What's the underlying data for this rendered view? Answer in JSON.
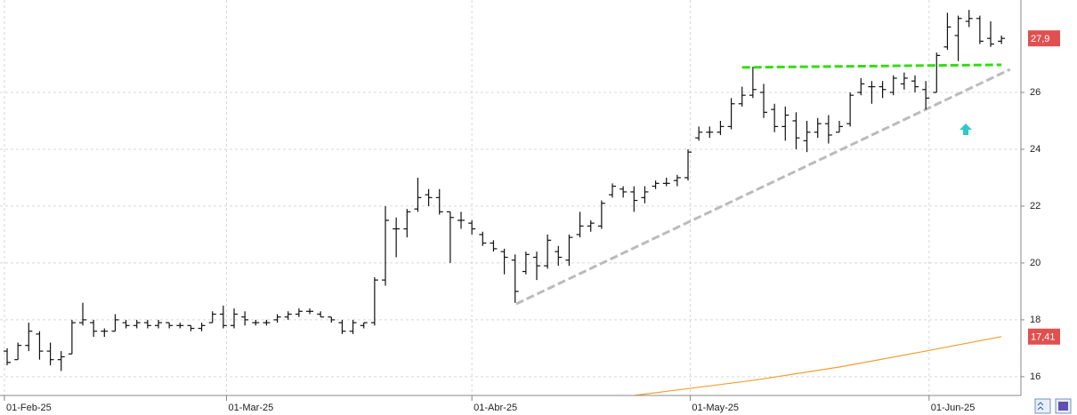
{
  "chart_data": {
    "type": "ohlc",
    "x": [
      0,
      1,
      2,
      3,
      4,
      5,
      6,
      7,
      8,
      9,
      10,
      11,
      12,
      13,
      14,
      15,
      16,
      17,
      18,
      19,
      20,
      21,
      22,
      23,
      24,
      25,
      26,
      27,
      28,
      29,
      30,
      31,
      32,
      33,
      34,
      35,
      36,
      37,
      38,
      39,
      40,
      41,
      42,
      43,
      44,
      45,
      46,
      47,
      48,
      49,
      50,
      51,
      52,
      53,
      54,
      55,
      56,
      57,
      58,
      59,
      60,
      61,
      62,
      63,
      64,
      65,
      66,
      67,
      68,
      69,
      70,
      71,
      72,
      73,
      74,
      75,
      76,
      77,
      78,
      79,
      80,
      81,
      82,
      83,
      84,
      85,
      86,
      87,
      88,
      89,
      90,
      91,
      92
    ],
    "open": [
      16.9,
      16.6,
      17.1,
      17.5,
      16.9,
      16.6,
      16.8,
      17.9,
      17.9,
      17.6,
      17.6,
      17.9,
      17.8,
      17.9,
      17.8,
      17.9,
      17.8,
      17.8,
      17.7,
      17.9,
      18.2,
      17.8,
      18.1,
      17.9,
      17.9,
      18.0,
      18.1,
      18.2,
      18.3,
      18.2,
      18.1,
      17.9,
      17.6,
      17.8,
      17.9,
      19.4,
      21.2,
      21.2,
      21.9,
      22.4,
      22.3,
      21.8,
      21.5,
      21.4,
      21.0,
      20.7,
      20.4,
      20.1,
      19.7,
      20.2,
      19.9,
      20.4,
      20.1,
      21.0,
      21.3,
      21.3,
      22.4,
      22.6,
      22.5,
      22.3,
      22.7,
      22.8,
      22.9,
      23.0,
      24.4,
      24.6,
      24.6,
      24.8,
      25.6,
      25.9,
      26.0,
      25.4,
      24.8,
      25.0,
      24.3,
      24.6,
      24.9,
      24.6,
      24.9,
      26.0,
      26.2,
      26.2,
      26.0,
      26.3,
      26.4,
      26.1,
      26.0,
      27.6,
      28.0,
      28.5,
      28.6,
      27.9,
      27.8
    ],
    "high": [
      17.0,
      17.2,
      17.9,
      17.6,
      17.2,
      16.9,
      18.0,
      18.6,
      18.0,
      17.7,
      18.2,
      18.0,
      18.0,
      18.0,
      18.0,
      17.9,
      17.9,
      17.8,
      17.9,
      18.3,
      18.5,
      18.4,
      18.3,
      18.0,
      18.0,
      18.2,
      18.3,
      18.4,
      18.4,
      18.3,
      18.1,
      18.0,
      18.0,
      17.9,
      19.5,
      22.0,
      21.6,
      21.9,
      23.0,
      22.6,
      22.6,
      21.8,
      21.8,
      21.5,
      21.1,
      20.8,
      20.5,
      20.3,
      20.4,
      20.4,
      21.0,
      20.6,
      21.0,
      21.8,
      21.5,
      22.2,
      22.8,
      22.7,
      22.7,
      22.7,
      22.9,
      23.0,
      23.1,
      24.0,
      24.8,
      24.8,
      25.0,
      25.8,
      26.2,
      26.9,
      26.3,
      25.6,
      25.5,
      25.3,
      25.0,
      25.1,
      25.2,
      25.0,
      26.0,
      26.5,
      26.4,
      26.4,
      26.6,
      26.7,
      26.6,
      26.4,
      27.4,
      28.8,
      28.7,
      28.9,
      28.7,
      28.5,
      28.0
    ],
    "low": [
      16.4,
      16.6,
      16.9,
      16.6,
      16.4,
      16.2,
      16.8,
      17.8,
      17.4,
      17.4,
      17.6,
      17.7,
      17.7,
      17.7,
      17.7,
      17.7,
      17.7,
      17.6,
      17.6,
      17.9,
      17.7,
      17.7,
      17.8,
      17.8,
      17.8,
      17.9,
      18.0,
      18.1,
      18.2,
      18.1,
      17.9,
      17.5,
      17.5,
      17.7,
      17.8,
      19.2,
      20.2,
      20.9,
      21.8,
      22.0,
      21.7,
      20.0,
      21.2,
      21.0,
      20.6,
      20.4,
      19.6,
      18.6,
      19.6,
      19.4,
      19.8,
      19.9,
      19.9,
      20.9,
      21.1,
      21.2,
      22.3,
      22.3,
      21.8,
      22.1,
      22.6,
      22.7,
      22.7,
      22.9,
      24.3,
      24.4,
      24.5,
      24.7,
      25.5,
      25.8,
      25.1,
      24.6,
      24.3,
      24.0,
      23.9,
      24.4,
      24.2,
      24.6,
      24.8,
      25.9,
      25.6,
      25.8,
      25.9,
      26.1,
      26.0,
      25.4,
      26.0,
      27.5,
      27.1,
      28.3,
      27.7,
      27.6,
      27.7
    ],
    "close": [
      16.5,
      17.1,
      17.6,
      16.9,
      16.6,
      16.7,
      17.9,
      18.0,
      17.6,
      17.6,
      18.0,
      17.8,
      17.9,
      17.8,
      17.9,
      17.8,
      17.8,
      17.7,
      17.8,
      18.2,
      17.8,
      18.2,
      18.0,
      17.9,
      17.9,
      18.1,
      18.2,
      18.3,
      18.3,
      18.1,
      18.0,
      17.6,
      17.9,
      17.9,
      19.4,
      21.5,
      21.2,
      21.8,
      22.3,
      22.3,
      21.8,
      21.6,
      21.5,
      21.2,
      20.7,
      20.5,
      20.2,
      19.0,
      20.3,
      19.9,
      20.8,
      20.2,
      20.9,
      21.3,
      21.4,
      22.1,
      22.7,
      22.5,
      22.2,
      22.5,
      22.8,
      22.8,
      23.0,
      23.9,
      24.6,
      24.6,
      24.8,
      25.6,
      25.9,
      26.1,
      25.3,
      24.8,
      25.2,
      24.4,
      24.6,
      24.9,
      24.5,
      24.8,
      25.9,
      26.3,
      26.2,
      26.1,
      26.5,
      26.5,
      26.2,
      25.8,
      27.3,
      28.3,
      28.6,
      28.6,
      27.8,
      27.7,
      27.9
    ],
    "color": "#111111",
    "lines": [
      {
        "color": "#f0a030",
        "x": [
          58,
          69,
          77,
          85,
          92
        ],
        "values": [
          15.34,
          15.87,
          16.34,
          16.9,
          17.41
        ]
      },
      {
        "color": "#33dd11",
        "dashed": true,
        "x": [
          68,
          92
        ],
        "values": [
          26.88,
          26.97
        ]
      },
      {
        "color": "#bbbbbb",
        "dashed": true,
        "x": [
          47.1,
          92.8
        ],
        "values": [
          18.56,
          26.81
        ]
      }
    ],
    "price_labels": [
      {
        "value": 27.9,
        "label": "27,9",
        "color": "#e05050"
      },
      {
        "value": 17.41,
        "label": "17,41",
        "color": "#e05050"
      }
    ],
    "xlim": [
      -0.66,
      93.8
    ],
    "xticks": [
      {
        "value": -0.25,
        "label": "01-Feb-25"
      },
      {
        "value": 20.3,
        "label": "01-Mar-25"
      },
      {
        "value": 43.0,
        "label": "01-Abr-25"
      },
      {
        "value": 63.2,
        "label": "01-May-25"
      },
      {
        "value": 85.3,
        "label": "01-Jun-25"
      }
    ],
    "ylim": [
      15.34,
      29.25
    ],
    "yticks": [
      16,
      18,
      20,
      22,
      24,
      26
    ],
    "grid": true
  }
}
